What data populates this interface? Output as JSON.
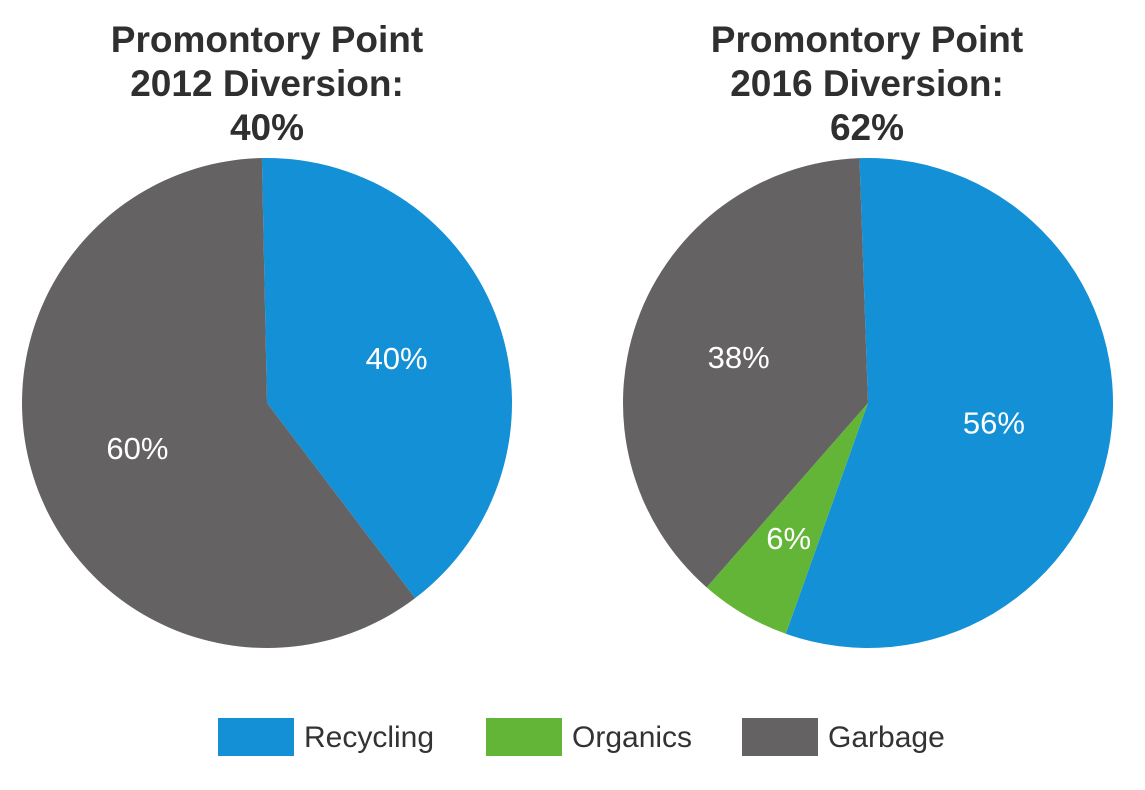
{
  "chart_data": [
    {
      "type": "pie",
      "title": [
        "Promontory Point",
        "2012 Diversion:",
        "40%"
      ],
      "slices": [
        {
          "name": "Recycling",
          "value": 40,
          "label": "40%"
        },
        {
          "name": "Garbage",
          "value": 60,
          "label": "60%"
        }
      ]
    },
    {
      "type": "pie",
      "title": [
        "Promontory Point",
        "2016 Diversion:",
        "62%"
      ],
      "slices": [
        {
          "name": "Recycling",
          "value": 56,
          "label": "56%"
        },
        {
          "name": "Organics",
          "value": 6,
          "label": "6%"
        },
        {
          "name": "Garbage",
          "value": 38,
          "label": "38%"
        }
      ]
    }
  ],
  "legend": {
    "placement": "bottom",
    "items": [
      {
        "name": "Recycling",
        "color": "#1490d7"
      },
      {
        "name": "Organics",
        "color": "#62b536"
      },
      {
        "name": "Garbage",
        "color": "#646263"
      }
    ]
  },
  "colors": {
    "Recycling": "#1490d7",
    "Organics": "#62b536",
    "Garbage": "#646263"
  }
}
